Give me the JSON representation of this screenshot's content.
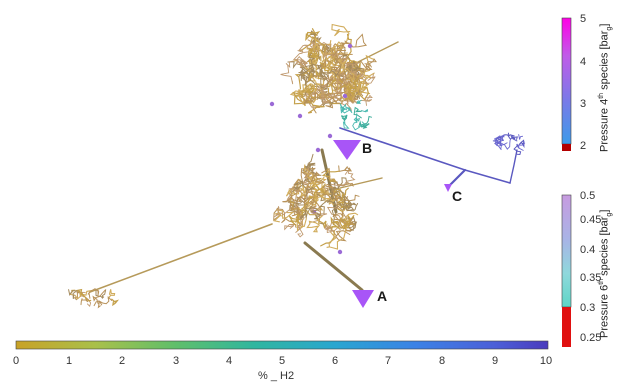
{
  "node_labels": {
    "a": "A",
    "b": "B",
    "c": "C"
  },
  "colorbar_bottom": {
    "ticks": [
      "0",
      "1",
      "2",
      "3",
      "4",
      "5",
      "6",
      "7",
      "8",
      "9",
      "10"
    ],
    "title": "% _ H2"
  },
  "colorbar_right_top": {
    "ticks": [
      "5",
      "4",
      "3",
      "2"
    ],
    "title_pre": "Pressure 4",
    "title_sup": "th",
    "title_mid": " species [bar",
    "title_sub": "g",
    "title_post": "]"
  },
  "colorbar_right_bottom": {
    "ticks": [
      "0.5",
      "0.45",
      "0.4",
      "0.35",
      "0.3",
      "0.25"
    ],
    "title_pre": "Pressure 6",
    "title_sup": "th",
    "title_mid": " species [bar",
    "title_sub": "g",
    "title_post": "]"
  },
  "colors": {
    "pipe_main": "#c4a04a",
    "pipe_dark": "#8a7a50",
    "pipe_blue": "#5a58c0",
    "pipe_teal": "#3fae9c",
    "node_marker": "#a855f7"
  }
}
